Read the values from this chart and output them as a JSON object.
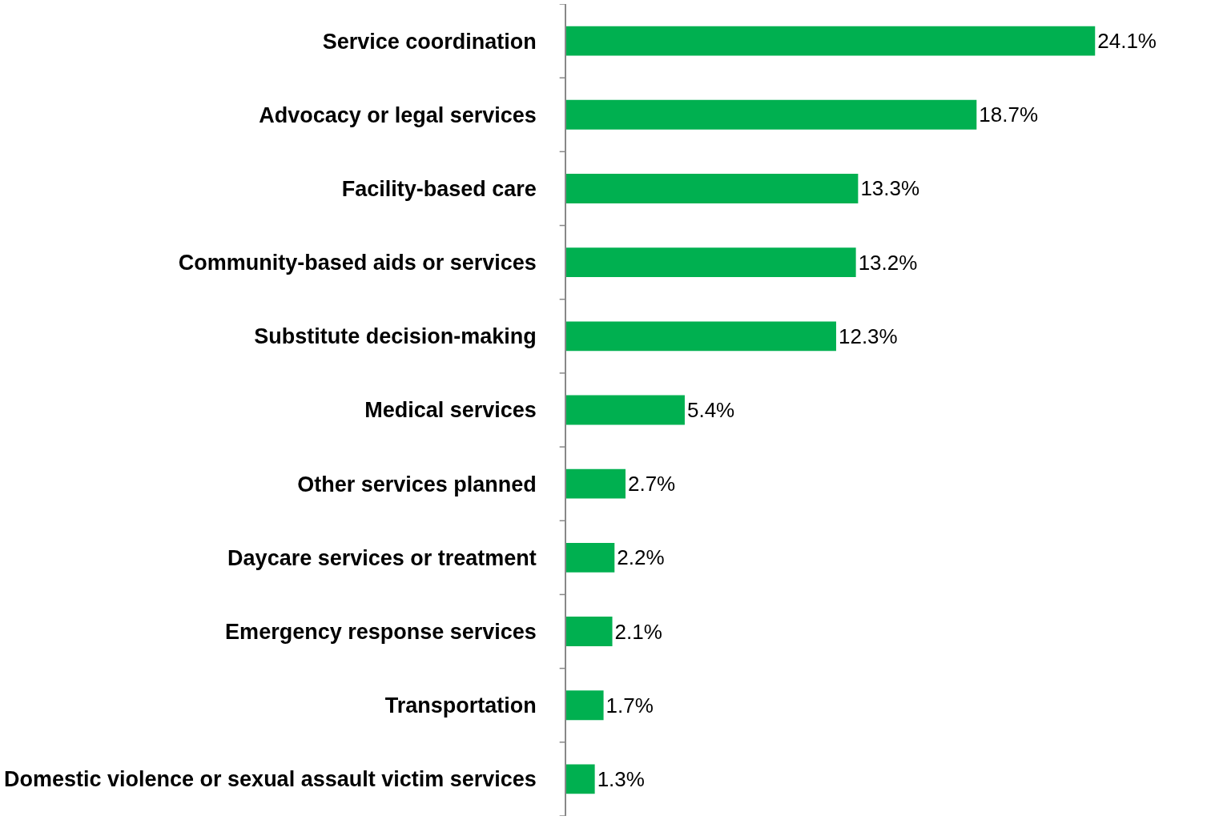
{
  "chart_data": {
    "type": "bar",
    "orientation": "horizontal",
    "color": "#00b050",
    "categories": [
      "Service coordination",
      "Advocacy or legal services",
      "Facility-based care",
      "Community-based aids or services",
      "Substitute decision-making",
      "Medical services",
      "Other services planned",
      "Daycare services or treatment",
      "Emergency response services",
      "Transportation",
      "Domestic violence or sexual assault victim services"
    ],
    "values": [
      24.1,
      18.7,
      13.3,
      13.2,
      12.3,
      5.4,
      2.7,
      2.2,
      2.1,
      1.7,
      1.3
    ],
    "value_labels": [
      "24.1%",
      "18.7%",
      "13.3%",
      "13.2%",
      "12.3%",
      "5.4%",
      "2.7%",
      "2.2%",
      "2.1%",
      "1.7%",
      "1.3%"
    ]
  }
}
